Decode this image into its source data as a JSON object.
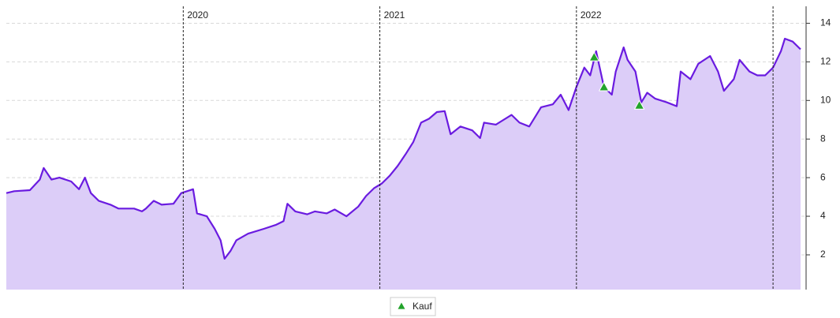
{
  "chart_data": {
    "type": "line",
    "xlim": [
      2019.1,
      2023.14
    ],
    "xticks": [
      2020,
      2021,
      2022,
      {
        "value": 2023,
        "label": null
      }
    ],
    "ylim": [
      0.2,
      15
    ],
    "yticks": [
      2,
      4,
      6,
      8,
      10,
      12,
      14
    ],
    "grid": true,
    "y_axis_side": "right",
    "legend": "bottom",
    "series": [
      {
        "color": "#6a1be0",
        "fill": "#dccdf8",
        "x": [
          2019.1,
          2019.14,
          2019.22,
          2019.27,
          2019.29,
          2019.33,
          2019.37,
          2019.43,
          2019.47,
          2019.5,
          2019.53,
          2019.57,
          2019.63,
          2019.67,
          2019.75,
          2019.79,
          2019.81,
          2019.85,
          2019.89,
          2019.95,
          2019.99,
          2020.05,
          2020.07,
          2020.12,
          2020.16,
          2020.19,
          2020.21,
          2020.24,
          2020.27,
          2020.33,
          2020.41,
          2020.47,
          2020.51,
          2020.53,
          2020.57,
          2020.63,
          2020.67,
          2020.73,
          2020.77,
          2020.83,
          2020.89,
          2020.93,
          2020.97,
          2021.01,
          2021.05,
          2021.09,
          2021.13,
          2021.17,
          2021.21,
          2021.25,
          2021.29,
          2021.33,
          2021.36,
          2021.41,
          2021.47,
          2021.51,
          2021.53,
          2021.59,
          2021.67,
          2021.71,
          2021.76,
          2021.82,
          2021.88,
          2021.92,
          2021.96,
          2022.0,
          2022.04,
          2022.07,
          2022.1,
          2022.14,
          2022.18,
          2022.2,
          2022.24,
          2022.26,
          2022.3,
          2022.33,
          2022.36,
          2022.4,
          2022.46,
          2022.51,
          2022.53,
          2022.58,
          2022.62,
          2022.68,
          2022.72,
          2022.75,
          2022.8,
          2022.83,
          2022.88,
          2022.92,
          2022.96,
          2023.0,
          2023.04,
          2023.06,
          2023.1,
          2023.14
        ],
        "values": [
          5.2,
          5.3,
          5.35,
          5.9,
          6.5,
          5.9,
          6.0,
          5.8,
          5.4,
          6.0,
          5.2,
          4.8,
          4.6,
          4.4,
          4.4,
          4.25,
          4.4,
          4.8,
          4.6,
          4.65,
          5.2,
          5.4,
          4.15,
          4.0,
          3.35,
          2.75,
          1.8,
          2.2,
          2.75,
          3.1,
          3.35,
          3.55,
          3.75,
          4.65,
          4.25,
          4.1,
          4.25,
          4.15,
          4.35,
          4.0,
          4.5,
          5.05,
          5.45,
          5.7,
          6.1,
          6.6,
          7.2,
          7.85,
          8.85,
          9.05,
          9.4,
          9.45,
          8.25,
          8.65,
          8.45,
          8.05,
          8.85,
          8.75,
          9.25,
          8.85,
          8.65,
          9.65,
          9.8,
          10.3,
          9.5,
          10.7,
          11.7,
          11.3,
          12.55,
          10.7,
          10.3,
          11.5,
          12.75,
          12.1,
          11.5,
          9.9,
          10.4,
          10.1,
          9.9,
          9.7,
          11.5,
          11.1,
          11.9,
          12.3,
          11.5,
          10.5,
          11.1,
          12.1,
          11.5,
          11.3,
          11.3,
          11.7,
          12.55,
          13.2,
          13.05,
          12.65
        ]
      },
      {
        "name": "Kauf",
        "type": "scatter",
        "color": "#22a32b",
        "x": [
          2022.09,
          2022.14,
          2022.32
        ],
        "values": [
          12.25,
          10.7,
          9.75
        ]
      }
    ]
  }
}
